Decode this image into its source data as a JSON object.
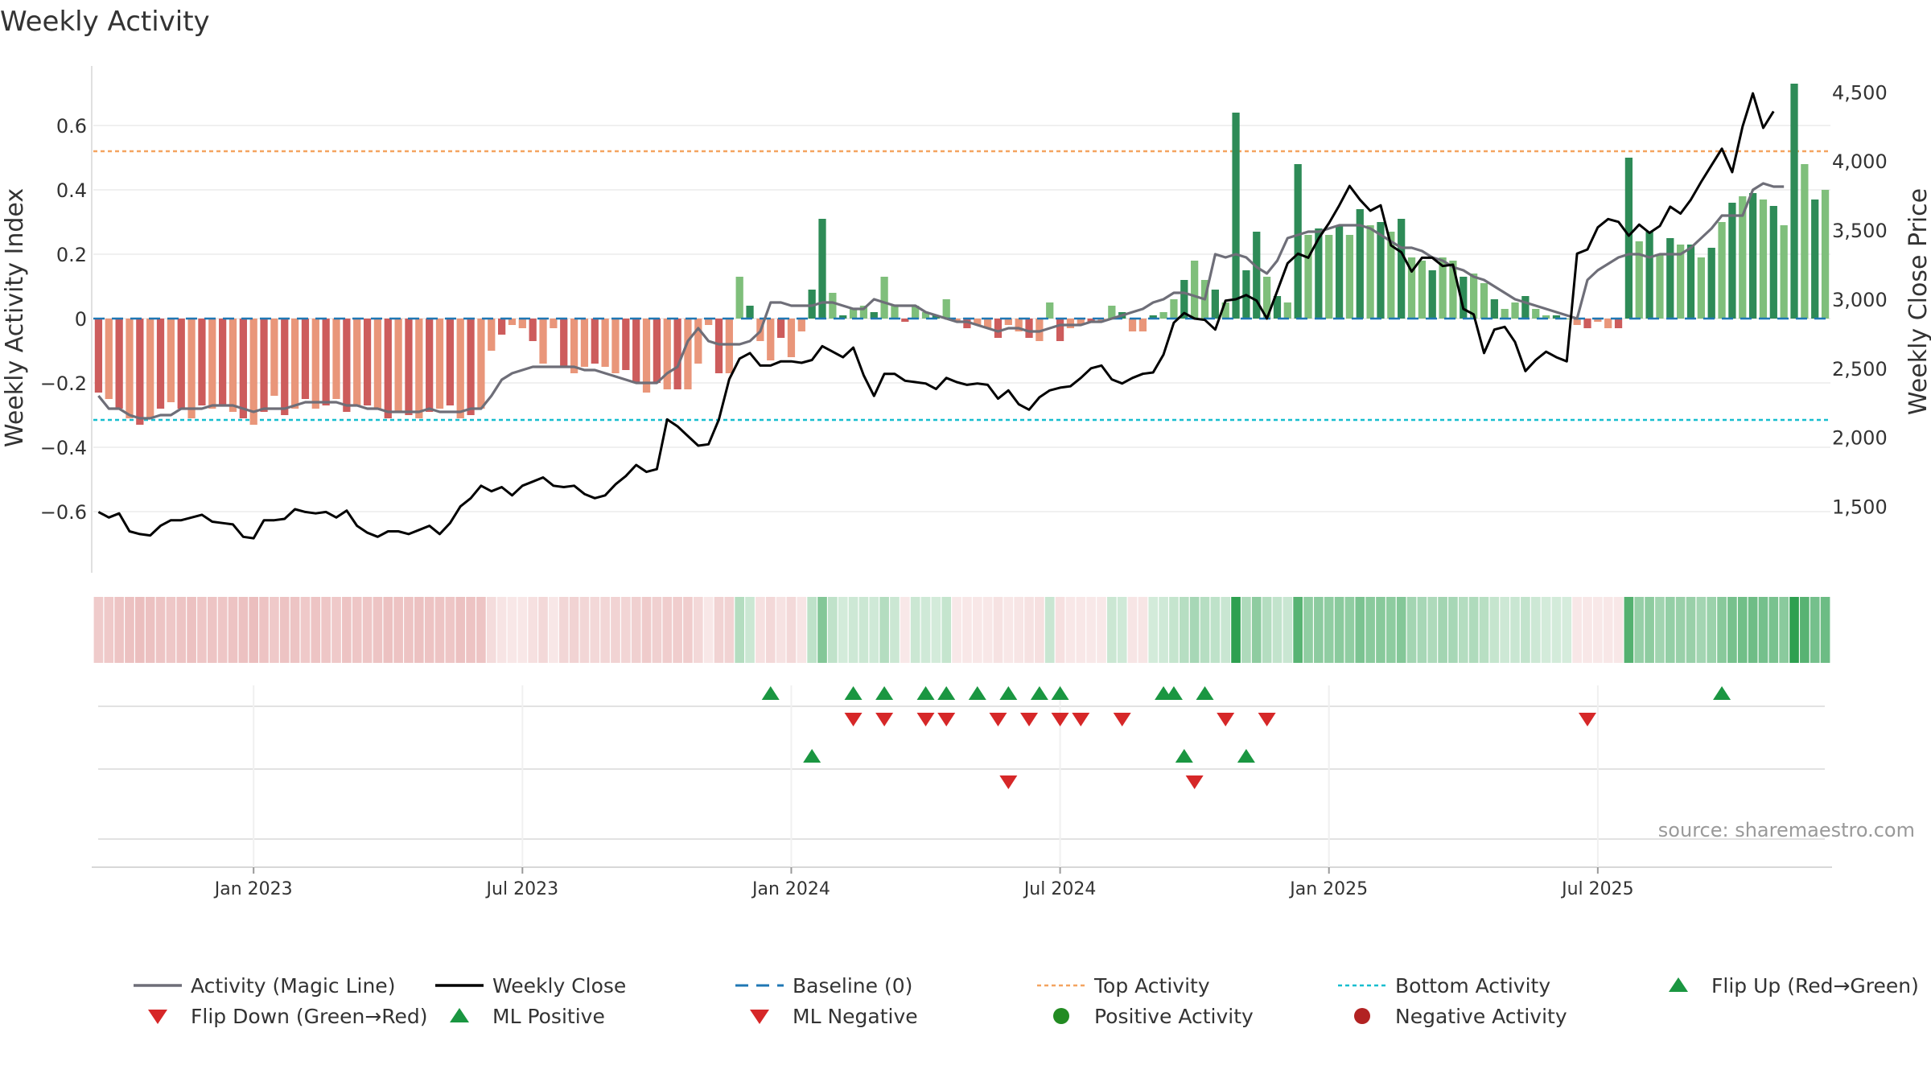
{
  "chart_data": {
    "type": "bar",
    "title": "Weekly Activity",
    "ylabel": "Weekly Activity Index",
    "y2label": "Weekly Close Price",
    "ylim": [
      -0.79,
      0.79
    ],
    "y2lim": [
      1020,
      4700
    ],
    "y_ticks": [
      -0.6,
      -0.4,
      -0.2,
      0,
      0.2,
      0.4,
      0.6
    ],
    "y_tick_labels": [
      "−0.6",
      "−0.4",
      "−0.2",
      "0",
      "0.2",
      "0.4",
      "0.6"
    ],
    "y2_ticks": [
      1500,
      2000,
      2500,
      3000,
      3500,
      4000,
      4500
    ],
    "y2_tick_labels": [
      "1,500",
      "2,000",
      "2,500",
      "3,000",
      "3,500",
      "4,000",
      "4,500"
    ],
    "x_ticks": [
      "Jan 2023",
      "Jul 2023",
      "Jan 2024",
      "Jul 2024",
      "Jan 2025",
      "Jul 2025"
    ],
    "x_tick_index": [
      15,
      41,
      67,
      93,
      119,
      145
    ],
    "top_activity": 0.52,
    "bottom_activity": -0.315,
    "source": "source: sharemaestro.com",
    "colors": {
      "pos_strong": "#2e8b57",
      "pos_weak": "#7fbf7b",
      "neg_strong": "#cd5c5c",
      "neg_weak": "#e9967a",
      "magic_line": "#6e6e78",
      "close_line": "#000000",
      "baseline": "#1f77b4",
      "top": "#f4a460",
      "bottom": "#17becf",
      "marker_up": "#1a9641",
      "marker_down": "#d62728",
      "dot_pos": "#228b22",
      "dot_neg": "#b22222"
    },
    "series": [
      {
        "name": "Weekly Activity Index",
        "values": [
          -0.23,
          -0.25,
          -0.28,
          -0.31,
          -0.33,
          -0.31,
          -0.28,
          -0.26,
          -0.28,
          -0.31,
          -0.27,
          -0.28,
          -0.27,
          -0.29,
          -0.31,
          -0.33,
          -0.29,
          -0.24,
          -0.3,
          -0.28,
          -0.25,
          -0.28,
          -0.27,
          -0.25,
          -0.29,
          -0.27,
          -0.27,
          -0.28,
          -0.31,
          -0.29,
          -0.3,
          -0.31,
          -0.29,
          -0.28,
          -0.27,
          -0.31,
          -0.3,
          -0.28,
          -0.1,
          -0.05,
          -0.02,
          -0.03,
          -0.07,
          -0.14,
          -0.03,
          -0.15,
          -0.17,
          -0.15,
          -0.14,
          -0.15,
          -0.17,
          -0.16,
          -0.2,
          -0.23,
          -0.2,
          -0.22,
          -0.22,
          -0.22,
          -0.14,
          -0.02,
          -0.17,
          -0.17,
          0.13,
          0.04,
          -0.07,
          -0.13,
          -0.06,
          -0.12,
          -0.04,
          0.09,
          0.31,
          0.08,
          0.01,
          0.03,
          0.04,
          0.02,
          0.13,
          0.04,
          -0.01,
          0.04,
          0.02,
          0.01,
          0.06,
          -0.01,
          -0.03,
          -0.02,
          -0.03,
          -0.06,
          -0.02,
          -0.04,
          -0.06,
          -0.07,
          0.05,
          -0.07,
          -0.03,
          -0.02,
          -0.01,
          -0.01,
          0.04,
          0.02,
          -0.04,
          -0.04,
          0.01,
          0.02,
          0.06,
          0.12,
          0.18,
          0.12,
          0.09,
          0.05,
          0.64,
          0.15,
          0.27,
          0.13,
          0.07,
          0.05,
          0.48,
          0.26,
          0.28,
          0.26,
          0.29,
          0.26,
          0.34,
          0.29,
          0.3,
          0.27,
          0.31,
          0.19,
          0.18,
          0.15,
          0.19,
          0.18,
          0.13,
          0.14,
          0.11,
          0.06,
          0.03,
          0.05,
          0.07,
          0.03,
          0.01,
          0.01,
          0.0,
          -0.02,
          -0.03,
          -0.01,
          -0.03,
          -0.03,
          0.5,
          0.24,
          0.27,
          0.2,
          0.25,
          0.23,
          0.23,
          0.19,
          0.22,
          0.3,
          0.36,
          0.38,
          0.39,
          0.37,
          0.35,
          0.29,
          0.73,
          0.48,
          0.37,
          0.4
        ]
      },
      {
        "name": "Activity (Magic Line)",
        "values": [
          -0.24,
          -0.28,
          -0.28,
          -0.3,
          -0.31,
          -0.31,
          -0.3,
          -0.3,
          -0.28,
          -0.28,
          -0.28,
          -0.27,
          -0.27,
          -0.27,
          -0.28,
          -0.29,
          -0.28,
          -0.28,
          -0.28,
          -0.27,
          -0.26,
          -0.26,
          -0.26,
          -0.26,
          -0.27,
          -0.27,
          -0.28,
          -0.28,
          -0.29,
          -0.29,
          -0.29,
          -0.29,
          -0.28,
          -0.29,
          -0.29,
          -0.29,
          -0.28,
          -0.28,
          -0.24,
          -0.19,
          -0.17,
          -0.16,
          -0.15,
          -0.15,
          -0.15,
          -0.15,
          -0.15,
          -0.16,
          -0.16,
          -0.17,
          -0.18,
          -0.19,
          -0.2,
          -0.2,
          -0.2,
          -0.17,
          -0.15,
          -0.07,
          -0.03,
          -0.07,
          -0.08,
          -0.08,
          -0.08,
          -0.07,
          -0.04,
          0.05,
          0.05,
          0.04,
          0.04,
          0.04,
          0.05,
          0.05,
          0.04,
          0.03,
          0.03,
          0.06,
          0.05,
          0.04,
          0.04,
          0.04,
          0.02,
          0.01,
          0.0,
          -0.01,
          -0.01,
          -0.02,
          -0.03,
          -0.04,
          -0.03,
          -0.03,
          -0.04,
          -0.04,
          -0.03,
          -0.02,
          -0.02,
          -0.02,
          -0.01,
          -0.01,
          0.0,
          0.01,
          0.02,
          0.03,
          0.05,
          0.06,
          0.08,
          0.08,
          0.07,
          0.06,
          0.2,
          0.19,
          0.2,
          0.19,
          0.16,
          0.14,
          0.18,
          0.25,
          0.26,
          0.27,
          0.27,
          0.28,
          0.29,
          0.29,
          0.29,
          0.28,
          0.26,
          0.24,
          0.22,
          0.22,
          0.21,
          0.19,
          0.18,
          0.16,
          0.15,
          0.13,
          0.12,
          0.1,
          0.08,
          0.06,
          0.05,
          0.04,
          0.03,
          0.02,
          0.01,
          0.0,
          0.12,
          0.15,
          0.17,
          0.19,
          0.2,
          0.2,
          0.19,
          0.2,
          0.2,
          0.2,
          0.22,
          0.25,
          0.28,
          0.32,
          0.32,
          0.32,
          0.4,
          0.42,
          0.41,
          0.41
        ]
      },
      {
        "name": "Weekly Close",
        "values": [
          1460,
          1420,
          1450,
          1320,
          1300,
          1290,
          1360,
          1400,
          1400,
          1420,
          1440,
          1390,
          1380,
          1370,
          1280,
          1270,
          1400,
          1400,
          1410,
          1480,
          1460,
          1450,
          1460,
          1420,
          1470,
          1360,
          1310,
          1280,
          1320,
          1320,
          1300,
          1330,
          1360,
          1300,
          1380,
          1500,
          1560,
          1650,
          1610,
          1640,
          1580,
          1650,
          1680,
          1710,
          1650,
          1640,
          1650,
          1590,
          1560,
          1580,
          1660,
          1720,
          1800,
          1750,
          1770,
          2130,
          2080,
          2010,
          1940,
          1950,
          2130,
          2420,
          2570,
          2610,
          2520,
          2520,
          2550,
          2550,
          2540,
          2560,
          2660,
          2620,
          2580,
          2650,
          2450,
          2300,
          2460,
          2460,
          2410,
          2400,
          2390,
          2350,
          2430,
          2400,
          2380,
          2390,
          2380,
          2280,
          2340,
          2240,
          2200,
          2290,
          2340,
          2360,
          2370,
          2430,
          2500,
          2520,
          2420,
          2390,
          2430,
          2460,
          2470,
          2600,
          2830,
          2900,
          2860,
          2850,
          2780,
          2990,
          3000,
          3030,
          2990,
          2860,
          3060,
          3260,
          3330,
          3300,
          3440,
          3550,
          3680,
          3820,
          3720,
          3640,
          3680,
          3390,
          3340,
          3200,
          3300,
          3300,
          3240,
          3250,
          2930,
          2890,
          2610,
          2780,
          2800,
          2690,
          2480,
          2560,
          2620,
          2580,
          2550,
          3330,
          3360,
          3520,
          3580,
          3560,
          3460,
          3540,
          3480,
          3530,
          3670,
          3620,
          3720,
          3850,
          3970,
          4090,
          3920,
          4250,
          4490,
          4240,
          4360
        ]
      }
    ],
    "flip_up": [
      107,
      65,
      73,
      76,
      80,
      82,
      85,
      88,
      91,
      93,
      104,
      103,
      157
    ],
    "flip_down": [
      109,
      73,
      76,
      80,
      82,
      87,
      90,
      93,
      95,
      99,
      144,
      113
    ],
    "ml_positive": [
      69,
      105,
      111
    ],
    "ml_negative": [
      88,
      106
    ],
    "legend": [
      {
        "label": "Activity (Magic Line)",
        "kind": "line",
        "color": "#6e6e78"
      },
      {
        "label": "Weekly Close",
        "kind": "line",
        "color": "#000000"
      },
      {
        "label": "Baseline (0)",
        "kind": "dashed",
        "color": "#1f77b4"
      },
      {
        "label": "Top Activity",
        "kind": "dotted",
        "color": "#f4a460"
      },
      {
        "label": "Bottom Activity",
        "kind": "dotted",
        "color": "#17becf"
      },
      {
        "label": "Flip Up (Red→Green)",
        "kind": "tri-up",
        "color": "#1a9641"
      },
      {
        "label": "Flip Down (Green→Red)",
        "kind": "tri-down",
        "color": "#d62728"
      },
      {
        "label": "ML Positive",
        "kind": "tri-up",
        "color": "#1a9641"
      },
      {
        "label": "ML Negative",
        "kind": "tri-down",
        "color": "#d62728"
      },
      {
        "label": "Positive Activity",
        "kind": "dot",
        "color": "#228b22"
      },
      {
        "label": "Negative Activity",
        "kind": "dot",
        "color": "#b22222"
      }
    ]
  }
}
